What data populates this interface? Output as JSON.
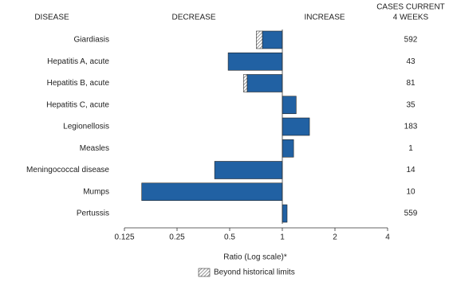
{
  "chart_data": {
    "type": "bar",
    "orientation": "horizontal",
    "headers": {
      "category": "DISEASE",
      "decrease": "DECREASE",
      "increase": "INCREASE",
      "cases": [
        "CASES CURRENT",
        "4 WEEKS"
      ]
    },
    "categories": [
      "Giardiasis",
      "Hepatitis A, acute",
      "Hepatitis B, acute",
      "Hepatitis C, acute",
      "Legionellosis",
      "Measles",
      "Meningococcal disease",
      "Mumps",
      "Pertussis"
    ],
    "values": [
      0.71,
      0.49,
      0.6,
      1.2,
      1.43,
      1.16,
      0.41,
      0.157,
      1.065
    ],
    "historical_limits": [
      0.77,
      null,
      0.63,
      null,
      null,
      null,
      null,
      null,
      null
    ],
    "cases": [
      592,
      43,
      81,
      35,
      183,
      1,
      14,
      10,
      559
    ],
    "color": "#2161a3",
    "xlim": [
      0.125,
      4
    ],
    "xticks": [
      0.125,
      0.25,
      0.5,
      1,
      2,
      4
    ],
    "log_scale": true,
    "baseline": 1,
    "xlabel": "Ratio (Log scale)*",
    "legend": "Beyond historical limits"
  }
}
